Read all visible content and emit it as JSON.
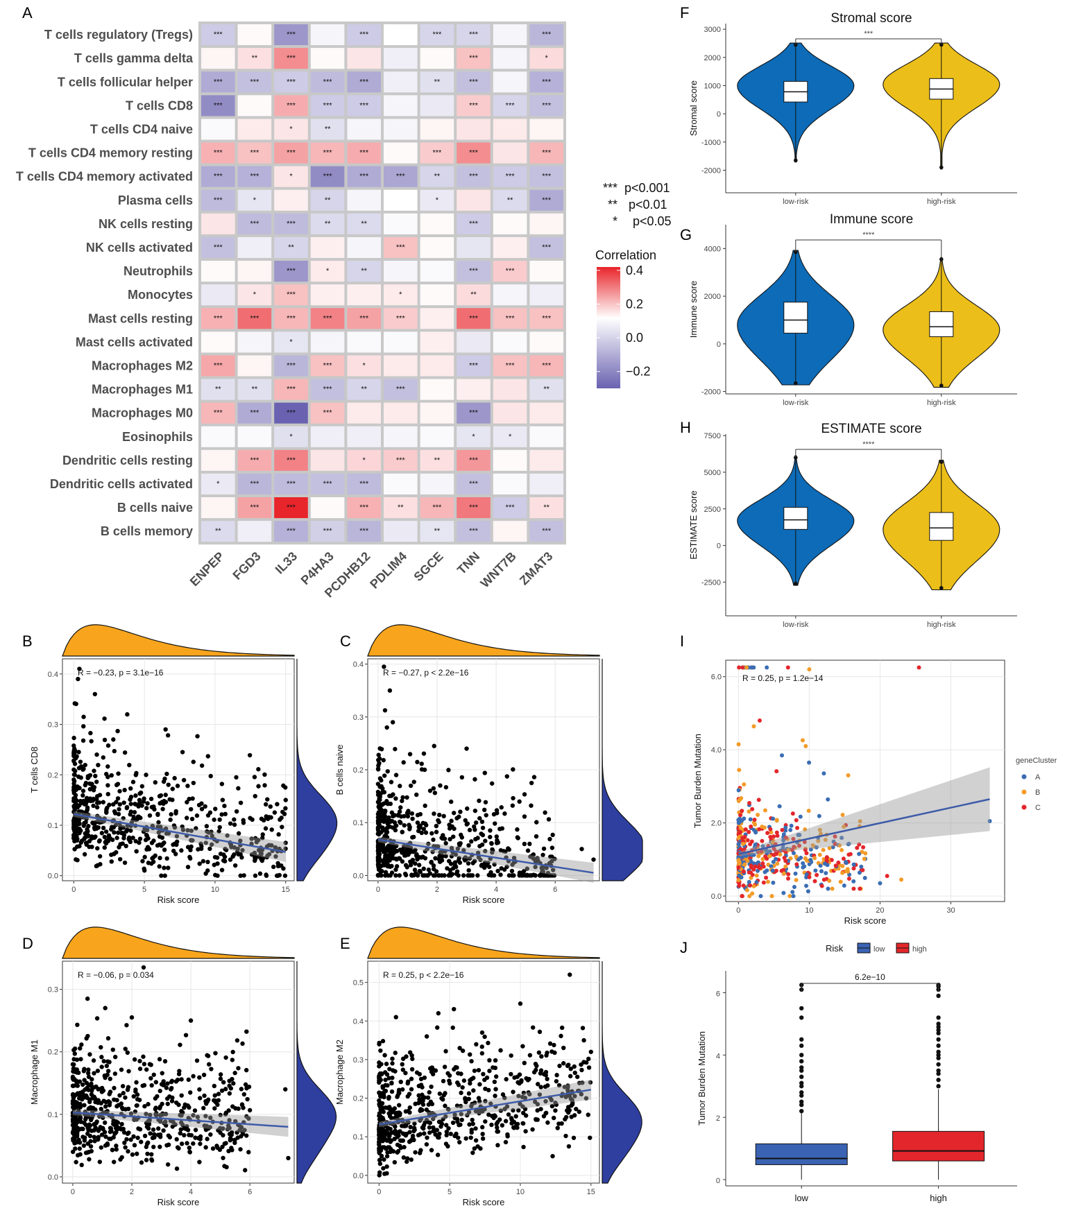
{
  "chart_data": [
    {
      "panel": "A",
      "type": "heatmap",
      "rows": [
        "T cells regulatory (Tregs)",
        "T cells gamma delta",
        "T cells follicular helper",
        "T cells CD8",
        "T cells CD4 naive",
        "T cells CD4 memory resting",
        "T cells CD4 memory activated",
        "Plasma cells",
        "NK cells resting",
        "NK cells activated",
        "Neutrophils",
        "Monocytes",
        "Mast cells resting",
        "Mast cells activated",
        "Macrophages M2",
        "Macrophages M1",
        "Macrophages M0",
        "Eosinophils",
        "Dendritic cells resting",
        "Dendritic cells activated",
        "B cells naive",
        "B cells memory"
      ],
      "columns": [
        "ENPEP",
        "FGD3",
        "IL33",
        "P4HA3",
        "PCDHB12",
        "PDLIM4",
        "SGCE",
        "TNN",
        "WNT7B",
        "ZMAT3"
      ],
      "values": [
        [
          -0.1,
          0.01,
          -0.2,
          -0.02,
          -0.1,
          0.0,
          -0.08,
          -0.08,
          -0.02,
          -0.14
        ],
        [
          0.02,
          0.06,
          0.22,
          0.01,
          0.05,
          -0.03,
          0.01,
          0.12,
          -0.02,
          0.07
        ],
        [
          -0.16,
          -0.12,
          -0.1,
          -0.13,
          -0.16,
          -0.03,
          -0.06,
          -0.12,
          -0.02,
          -0.15
        ],
        [
          -0.22,
          0.01,
          0.16,
          -0.1,
          -0.1,
          -0.02,
          -0.04,
          0.1,
          -0.08,
          -0.12
        ],
        [
          -0.01,
          0.04,
          0.05,
          -0.06,
          -0.02,
          -0.02,
          0.02,
          0.05,
          0.04,
          0.02
        ],
        [
          0.15,
          0.12,
          0.18,
          0.14,
          0.16,
          0.01,
          0.1,
          0.22,
          0.05,
          0.14
        ],
        [
          -0.16,
          -0.15,
          0.05,
          -0.22,
          -0.16,
          -0.17,
          -0.08,
          -0.12,
          -0.1,
          -0.12
        ],
        [
          -0.13,
          -0.05,
          0.03,
          -0.08,
          -0.02,
          0.0,
          -0.04,
          0.05,
          -0.07,
          -0.16
        ],
        [
          0.05,
          -0.13,
          -0.13,
          -0.07,
          -0.07,
          -0.01,
          0.01,
          -0.1,
          0.01,
          0.02
        ],
        [
          -0.12,
          -0.03,
          -0.08,
          0.03,
          -0.02,
          0.12,
          0.01,
          -0.05,
          0.03,
          -0.12
        ],
        [
          0.01,
          0.02,
          -0.2,
          0.04,
          -0.08,
          -0.02,
          -0.01,
          -0.12,
          0.1,
          0.01
        ],
        [
          -0.04,
          0.05,
          0.12,
          0.03,
          0.03,
          0.04,
          0.01,
          0.07,
          -0.02,
          -0.03
        ],
        [
          0.15,
          0.28,
          0.14,
          0.24,
          0.18,
          0.1,
          0.03,
          0.28,
          0.12,
          0.12
        ],
        [
          0.01,
          -0.02,
          -0.05,
          -0.02,
          -0.01,
          -0.01,
          0.03,
          -0.04,
          -0.01,
          0.01
        ],
        [
          0.17,
          0.02,
          -0.14,
          0.12,
          0.06,
          0.04,
          0.04,
          -0.1,
          0.12,
          0.14
        ],
        [
          -0.06,
          -0.06,
          0.14,
          -0.12,
          -0.08,
          -0.12,
          0.01,
          0.03,
          0.05,
          -0.06
        ],
        [
          0.14,
          -0.16,
          -0.3,
          0.12,
          0.04,
          0.04,
          0.02,
          -0.2,
          0.05,
          0.04
        ],
        [
          -0.01,
          -0.01,
          -0.06,
          -0.03,
          -0.03,
          -0.02,
          -0.01,
          -0.05,
          -0.04,
          -0.01
        ],
        [
          0.02,
          0.16,
          0.24,
          0.05,
          0.08,
          0.1,
          0.06,
          0.2,
          0.01,
          0.04
        ],
        [
          -0.04,
          -0.14,
          -0.13,
          -0.12,
          -0.13,
          -0.01,
          -0.02,
          -0.12,
          -0.01,
          -0.03
        ],
        [
          0.02,
          0.18,
          0.42,
          0.01,
          0.15,
          0.06,
          0.14,
          0.26,
          -0.1,
          0.06
        ],
        [
          -0.07,
          -0.03,
          -0.15,
          -0.09,
          -0.14,
          -0.04,
          -0.05,
          -0.12,
          0.02,
          -0.12
        ]
      ],
      "stars": [
        [
          "***",
          "",
          "***",
          "",
          "***",
          "",
          "***",
          "***",
          "",
          "***"
        ],
        [
          "",
          "**",
          "***",
          "",
          "",
          "",
          "",
          "***",
          "",
          "*"
        ],
        [
          "***",
          "***",
          "***",
          "***",
          "***",
          "",
          "**",
          "***",
          "",
          "***"
        ],
        [
          "***",
          "",
          "***",
          "***",
          "***",
          "",
          "",
          "***",
          "***",
          "***"
        ],
        [
          "",
          "",
          "*",
          "**",
          "",
          "",
          "",
          "",
          "",
          ""
        ],
        [
          "***",
          "***",
          "***",
          "***",
          "***",
          "",
          "***",
          "***",
          "",
          "***"
        ],
        [
          "***",
          "***",
          "*",
          "***",
          "***",
          "***",
          "**",
          "***",
          "***",
          "***"
        ],
        [
          "***",
          "*",
          "",
          "**",
          "",
          "",
          "*",
          "",
          "**",
          "***"
        ],
        [
          "",
          "***",
          "***",
          "**",
          "**",
          "",
          "",
          "***",
          "",
          ""
        ],
        [
          "***",
          "",
          "**",
          "",
          "",
          "***",
          "",
          "",
          "",
          "***"
        ],
        [
          "",
          "",
          "***",
          "*",
          "**",
          "",
          "",
          "***",
          "***",
          ""
        ],
        [
          "",
          "*",
          "***",
          "",
          "",
          "*",
          "",
          "**",
          "",
          ""
        ],
        [
          "***",
          "***",
          "***",
          "***",
          "***",
          "***",
          "",
          "***",
          "***",
          "***"
        ],
        [
          "",
          "",
          "*",
          "",
          "",
          "",
          "",
          "",
          "",
          ""
        ],
        [
          "***",
          "",
          "***",
          "***",
          "*",
          "",
          "",
          "***",
          "***",
          "***"
        ],
        [
          "**",
          "**",
          "***",
          "***",
          "**",
          "***",
          "",
          "",
          "",
          "**"
        ],
        [
          "***",
          "***",
          "***",
          "***",
          "",
          "",
          "",
          "***",
          "",
          ""
        ],
        [
          "",
          "",
          "*",
          "",
          "",
          "",
          "",
          "*",
          "*",
          ""
        ],
        [
          "",
          "***",
          "***",
          "",
          "*",
          "***",
          "**",
          "***",
          "",
          ""
        ],
        [
          "*",
          "***",
          "***",
          "***",
          "***",
          "",
          "",
          "***",
          "",
          ""
        ],
        [
          "",
          "***",
          "***",
          "",
          "***",
          "**",
          "***",
          "***",
          "***",
          "**"
        ],
        [
          "**",
          "",
          "***",
          "***",
          "***",
          "",
          "**",
          "***",
          "",
          "***"
        ]
      ],
      "significance_legend": [
        {
          "stars": "***",
          "label": "p<0.001"
        },
        {
          "stars": "**",
          "label": "p<0.01"
        },
        {
          "stars": "*",
          "label": "p<0.05"
        }
      ],
      "colorbar": {
        "title": "Correlation",
        "ticks": [
          "0.4",
          "0.2",
          "0.0",
          "−0.2"
        ],
        "range": [
          -0.3,
          0.42
        ],
        "low_color": "#6a62b0",
        "mid_color": "#ffffff",
        "high_color": "#e8252b"
      }
    },
    {
      "panel": "B",
      "type": "scatter",
      "xlabel": "Risk score",
      "ylabel": "T cells CD8",
      "xticks": [
        0,
        5,
        10,
        15
      ],
      "yticks": [
        0.0,
        0.1,
        0.2,
        0.3,
        0.4
      ],
      "xlim": [
        -0.8,
        15.6
      ],
      "ylim": [
        -0.01,
        0.43
      ],
      "annotation": "R = −0.23, p = 3.1e−16",
      "fit": {
        "x0": 0,
        "y0": 0.122,
        "x1": 15,
        "y1": 0.047
      },
      "n_points": 650,
      "point_seed": 11,
      "skew": 2.2,
      "outliers": [
        [
          0.4,
          0.41
        ],
        [
          1.5,
          0.36
        ],
        [
          6.5,
          0.29
        ],
        [
          7.7,
          0.245
        ],
        [
          11.5,
          0.195
        ],
        [
          2.8,
          0.27
        ],
        [
          15,
          0.15
        ],
        [
          0.3,
          0.39
        ],
        [
          12,
          0.11
        ],
        [
          14,
          0.06
        ]
      ]
    },
    {
      "panel": "C",
      "type": "scatter",
      "xlabel": "Risk score",
      "ylabel": "B cells naive",
      "xticks": [
        0,
        2,
        4,
        6
      ],
      "yticks": [
        0.0,
        0.1,
        0.2,
        0.3,
        0.4
      ],
      "xlim": [
        -0.35,
        7.5
      ],
      "ylim": [
        -0.01,
        0.41
      ],
      "annotation": "R = −0.27, p < 2.2e−16",
      "fit": {
        "x0": 0,
        "y0": 0.068,
        "x1": 7.3,
        "y1": 0.005
      },
      "n_points": 650,
      "point_seed": 23,
      "skew": 2.2,
      "outliers": [
        [
          0.2,
          0.395
        ],
        [
          0.4,
          0.35
        ],
        [
          0.5,
          0.29
        ],
        [
          1.9,
          0.245
        ],
        [
          3.0,
          0.24
        ],
        [
          5.2,
          0.175
        ],
        [
          0.3,
          0.28
        ],
        [
          7.3,
          0.03
        ],
        [
          6.9,
          0.05
        ]
      ]
    },
    {
      "panel": "D",
      "type": "scatter",
      "xlabel": "Risk score",
      "ylabel": "Macrophage M1",
      "xticks": [
        0,
        2,
        4,
        6
      ],
      "yticks": [
        0.0,
        0.1,
        0.2,
        0.3
      ],
      "xlim": [
        -0.35,
        7.5
      ],
      "ylim": [
        -0.01,
        0.345
      ],
      "annotation": "R = −0.06, p = 0.034",
      "fit": {
        "x0": 0,
        "y0": 0.103,
        "x1": 7.3,
        "y1": 0.08
      },
      "n_points": 650,
      "point_seed": 37,
      "skew": 1.8,
      "outliers": [
        [
          2.4,
          0.335
        ],
        [
          0.5,
          0.285
        ],
        [
          4.0,
          0.25
        ],
        [
          2.0,
          0.255
        ],
        [
          1.1,
          0.27
        ],
        [
          7.3,
          0.03
        ],
        [
          7.2,
          0.14
        ]
      ]
    },
    {
      "panel": "E",
      "type": "scatter",
      "xlabel": "Risk score",
      "ylabel": "Macrophage M2",
      "xticks": [
        0,
        5,
        10,
        15
      ],
      "yticks": [
        0.0,
        0.1,
        0.2,
        0.3,
        0.4,
        0.5
      ],
      "xlim": [
        -0.8,
        15.6
      ],
      "ylim": [
        -0.02,
        0.555
      ],
      "annotation": "R = 0.25, p < 2.2e−16",
      "fit": {
        "x0": 0,
        "y0": 0.132,
        "x1": 15,
        "y1": 0.222
      },
      "n_points": 650,
      "point_seed": 53,
      "skew": 2.0,
      "outliers": [
        [
          13.5,
          0.52
        ],
        [
          10,
          0.445
        ],
        [
          4.2,
          0.42
        ],
        [
          1.2,
          0.41
        ],
        [
          7.3,
          0.37
        ],
        [
          15,
          0.32
        ],
        [
          14.5,
          0.35
        ]
      ]
    },
    {
      "panel": "F",
      "type": "violin",
      "title": "Stromal score",
      "ylabel": "Stromal score",
      "categories": [
        "low-risk",
        "high-risk"
      ],
      "yticks": [
        -2000,
        -1000,
        0,
        1000,
        2000,
        3000
      ],
      "ylim": [
        -2800,
        3200
      ],
      "significance": "***",
      "groups": [
        {
          "name": "low-risk",
          "min": -1650,
          "q1": 420,
          "median": 780,
          "q3": 1150,
          "max": 2450,
          "mode": 1000,
          "color": "#0d6bb7"
        },
        {
          "name": "high-risk",
          "min": -1900,
          "q1": 520,
          "median": 880,
          "q3": 1250,
          "max": 2450,
          "mode": 1050,
          "color": "#ebbe19"
        }
      ]
    },
    {
      "panel": "G",
      "type": "violin",
      "title": "Immune score",
      "ylabel": "Immune score",
      "categories": [
        "low-risk",
        "high-risk"
      ],
      "yticks": [
        -2000,
        0,
        2000,
        4000
      ],
      "ylim": [
        -2100,
        5000
      ],
      "significance": "****",
      "groups": [
        {
          "name": "low-risk",
          "min": -1650,
          "q1": 450,
          "median": 1000,
          "q3": 1750,
          "max": 3850,
          "mode": 800,
          "color": "#0d6bb7"
        },
        {
          "name": "high-risk",
          "min": -1750,
          "q1": 300,
          "median": 720,
          "q3": 1350,
          "max": 3550,
          "mode": 600,
          "color": "#ebbe19"
        }
      ]
    },
    {
      "panel": "H",
      "type": "violin",
      "title": "ESTIMATE score",
      "ylabel": "ESTIMATE score",
      "categories": [
        "low-risk",
        "high-risk"
      ],
      "yticks": [
        -2500,
        0,
        2500,
        5000,
        7500
      ],
      "ylim": [
        -4800,
        7600
      ],
      "significance": "****",
      "groups": [
        {
          "name": "low-risk",
          "min": -2600,
          "q1": 1100,
          "median": 1750,
          "q3": 2600,
          "max": 6000,
          "mode": 1700,
          "color": "#0d6bb7"
        },
        {
          "name": "high-risk",
          "min": -2900,
          "q1": 350,
          "median": 1200,
          "q3": 2250,
          "max": 5700,
          "mode": 1100,
          "color": "#ebbe19"
        }
      ]
    },
    {
      "panel": "I",
      "type": "scatter",
      "xlabel": "Risk score",
      "ylabel": "Tumor Burden Mutation",
      "xticks": [
        0,
        10,
        20,
        30
      ],
      "yticks": [
        0,
        2,
        4,
        6
      ],
      "xlim": [
        -1.8,
        37.6
      ],
      "ylim": [
        -0.15,
        6.45
      ],
      "annotation": "R = 0.25, p = 1.2e−14",
      "legend_title": "geneCluster",
      "clusters": [
        {
          "name": "A",
          "color": "#3a6db4"
        },
        {
          "name": "B",
          "color": "#f29b28"
        },
        {
          "name": "C",
          "color": "#e3262b"
        }
      ],
      "fit": {
        "x0": 0,
        "y0": 1.15,
        "x1": 35.5,
        "y1": 2.65
      },
      "n_points": 520,
      "point_seed": 71,
      "outliers": [
        [
          25.5,
          6.25
        ],
        [
          35.5,
          2.05
        ],
        [
          23,
          0.45
        ],
        [
          21,
          0.55
        ],
        [
          20,
          0.35
        ],
        [
          10,
          6.2
        ],
        [
          7,
          6.25
        ],
        [
          4,
          6.25
        ],
        [
          9.5,
          4.1
        ],
        [
          3,
          4.8
        ]
      ]
    },
    {
      "panel": "J",
      "type": "box",
      "ylabel": "Tumor Burden Mutation",
      "legend_title": "Risk",
      "legend": [
        {
          "name": "low",
          "color": "#3b63b4"
        },
        {
          "name": "high",
          "color": "#e3262b"
        }
      ],
      "categories": [
        "low",
        "high"
      ],
      "yticks": [
        0,
        2,
        4,
        6
      ],
      "ylim": [
        -0.2,
        6.7
      ],
      "pvalue": "6.2e−10",
      "groups": [
        {
          "name": "low",
          "min": 0.0,
          "q1": 0.48,
          "median": 0.68,
          "q3": 1.15,
          "whisker_high": 2.15,
          "color": "#3b63b4",
          "outliers": [
            2.2,
            2.4,
            2.5,
            2.7,
            2.8,
            3.0,
            3.1,
            3.3,
            3.5,
            3.6,
            3.8,
            4.0,
            4.3,
            4.5,
            5.2,
            5.5,
            6.1,
            6.25
          ]
        },
        {
          "name": "high",
          "min": 0.0,
          "q1": 0.6,
          "median": 0.92,
          "q3": 1.55,
          "whisker_high": 2.9,
          "color": "#e3262b",
          "outliers": [
            3.0,
            3.2,
            3.4,
            3.5,
            3.7,
            3.9,
            4.0,
            4.1,
            4.3,
            4.5,
            4.7,
            4.8,
            4.9,
            5.0,
            5.2,
            5.9,
            6.1,
            6.2,
            6.25
          ]
        }
      ]
    }
  ]
}
